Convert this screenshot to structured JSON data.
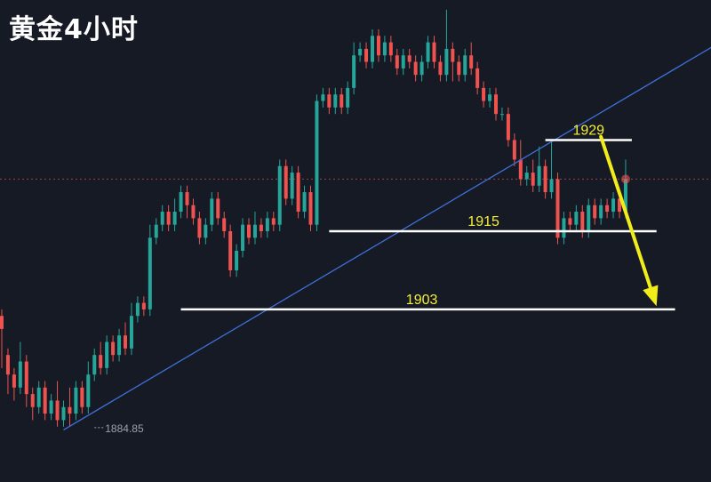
{
  "title": "黄金4小时",
  "chart_data": {
    "type": "candlestick",
    "title": "黄金4小时",
    "ylim": [
      1876.5,
      1950.5
    ],
    "low_marker": "1884.85",
    "current_price": 1923.0,
    "levels": [
      {
        "value": 1929,
        "label": "1929"
      },
      {
        "value": 1915,
        "label": "1915"
      },
      {
        "value": 1903,
        "label": "1903"
      }
    ],
    "candles": [
      [
        1902,
        1900,
        1903,
        1894
      ],
      [
        1896,
        1893,
        1897,
        1890
      ],
      [
        1893,
        1891,
        1894,
        1889
      ],
      [
        1891,
        1895,
        1898,
        1890
      ],
      [
        1895,
        1890,
        1896,
        1888
      ],
      [
        1890,
        1888,
        1891,
        1886
      ],
      [
        1888,
        1891,
        1892,
        1887
      ],
      [
        1891,
        1887,
        1892,
        1886
      ],
      [
        1887,
        1889,
        1890,
        1886
      ],
      [
        1889,
        1886,
        1892,
        1885
      ],
      [
        1886,
        1888,
        1889,
        1885
      ],
      [
        1888,
        1887,
        1891,
        1885
      ],
      [
        1887,
        1891,
        1892,
        1886
      ],
      [
        1891,
        1888,
        1892,
        1887
      ],
      [
        1888,
        1893,
        1895,
        1887
      ],
      [
        1893,
        1896,
        1897,
        1892
      ],
      [
        1896,
        1894,
        1898,
        1893
      ],
      [
        1894,
        1898,
        1899,
        1893
      ],
      [
        1898,
        1896,
        1899,
        1895
      ],
      [
        1896,
        1899,
        1900,
        1895
      ],
      [
        1899,
        1897,
        1901,
        1896
      ],
      [
        1897,
        1902,
        1904,
        1896
      ],
      [
        1902,
        1904,
        1905,
        1901
      ],
      [
        1904,
        1903,
        1905,
        1902
      ],
      [
        1903,
        1914,
        1916,
        1902
      ],
      [
        1914,
        1916,
        1917,
        1913
      ],
      [
        1916,
        1918,
        1919,
        1915
      ],
      [
        1918,
        1916,
        1919,
        1915
      ],
      [
        1916,
        1918,
        1920,
        1915
      ],
      [
        1918,
        1921,
        1922,
        1917
      ],
      [
        1921,
        1919,
        1922,
        1917
      ],
      [
        1919,
        1917,
        1920,
        1916
      ],
      [
        1917,
        1914,
        1918,
        1913
      ],
      [
        1914,
        1916,
        1917,
        1913
      ],
      [
        1916,
        1920,
        1921,
        1915
      ],
      [
        1920,
        1917,
        1921,
        1916
      ],
      [
        1917,
        1915,
        1918,
        1914
      ],
      [
        1915,
        1909,
        1916,
        1908
      ],
      [
        1909,
        1912,
        1913,
        1908
      ],
      [
        1912,
        1916,
        1917,
        1911
      ],
      [
        1916,
        1914,
        1917,
        1913
      ],
      [
        1914,
        1916,
        1918,
        1913
      ],
      [
        1916,
        1915,
        1917,
        1914
      ],
      [
        1915,
        1917,
        1918,
        1914
      ],
      [
        1917,
        1916,
        1918,
        1915
      ],
      [
        1916,
        1925,
        1926,
        1915
      ],
      [
        1925,
        1920,
        1926,
        1919
      ],
      [
        1920,
        1924,
        1925,
        1919
      ],
      [
        1924,
        1918,
        1925,
        1917
      ],
      [
        1918,
        1921,
        1922,
        1917
      ],
      [
        1921,
        1916,
        1922,
        1915
      ],
      [
        1916,
        1935,
        1936,
        1915
      ],
      [
        1935,
        1936,
        1937,
        1934
      ],
      [
        1936,
        1934,
        1937,
        1933
      ],
      [
        1934,
        1936,
        1937,
        1933
      ],
      [
        1936,
        1934,
        1937,
        1933
      ],
      [
        1934,
        1937,
        1938,
        1933
      ],
      [
        1937,
        1942,
        1944,
        1936
      ],
      [
        1942,
        1943,
        1944,
        1941
      ],
      [
        1943,
        1941,
        1944,
        1940
      ],
      [
        1941,
        1945,
        1946,
        1940
      ],
      [
        1945,
        1942,
        1946,
        1941
      ],
      [
        1942,
        1944,
        1945,
        1941
      ],
      [
        1944,
        1942,
        1945,
        1941
      ],
      [
        1942,
        1940,
        1943,
        1939
      ],
      [
        1940,
        1942,
        1943,
        1939
      ],
      [
        1942,
        1941,
        1943,
        1940
      ],
      [
        1941,
        1939,
        1942,
        1938
      ],
      [
        1939,
        1941,
        1942,
        1938
      ],
      [
        1941,
        1944,
        1945,
        1940
      ],
      [
        1944,
        1941,
        1945,
        1940
      ],
      [
        1941,
        1939,
        1942,
        1938
      ],
      [
        1939,
        1943,
        1949,
        1938
      ],
      [
        1943,
        1941,
        1944,
        1938
      ],
      [
        1941,
        1939,
        1942,
        1938
      ],
      [
        1939,
        1942,
        1943,
        1938
      ],
      [
        1942,
        1940,
        1944,
        1939
      ],
      [
        1940,
        1937,
        1941,
        1936
      ],
      [
        1937,
        1935,
        1938,
        1934
      ],
      [
        1935,
        1936,
        1937,
        1934
      ],
      [
        1936,
        1933,
        1937,
        1932
      ],
      [
        1933,
        1933,
        1934,
        1932
      ],
      [
        1933,
        1929,
        1934,
        1928
      ],
      [
        1929,
        1926,
        1930,
        1925
      ],
      [
        1926,
        1923,
        1929,
        1922
      ],
      [
        1923,
        1924,
        1925,
        1922
      ],
      [
        1924,
        1922,
        1926,
        1921
      ],
      [
        1922,
        1925,
        1928,
        1921
      ],
      [
        1925,
        1921,
        1926,
        1920
      ],
      [
        1921,
        1923,
        1929,
        1920
      ],
      [
        1923,
        1914,
        1924,
        1913
      ],
      [
        1914,
        1917,
        1918,
        1913
      ],
      [
        1917,
        1916,
        1918,
        1915
      ],
      [
        1916,
        1918,
        1919,
        1915
      ],
      [
        1918,
        1915,
        1919,
        1914
      ],
      [
        1915,
        1919,
        1920,
        1914
      ],
      [
        1919,
        1917,
        1920,
        1916
      ],
      [
        1917,
        1919,
        1920,
        1916
      ],
      [
        1919,
        1918,
        1920,
        1917
      ],
      [
        1918,
        1920,
        1921,
        1917
      ],
      [
        1920,
        1918,
        1921,
        1917
      ],
      [
        1918,
        1923,
        1926,
        1917
      ]
    ],
    "trendline": {
      "from_index": 10,
      "from_value": 1884.5,
      "slope_per_candle": 0.56
    },
    "arrow": {
      "from_index": 97,
      "from_value": 1929.5,
      "to_index": 106,
      "to_value": 1903.5
    }
  }
}
